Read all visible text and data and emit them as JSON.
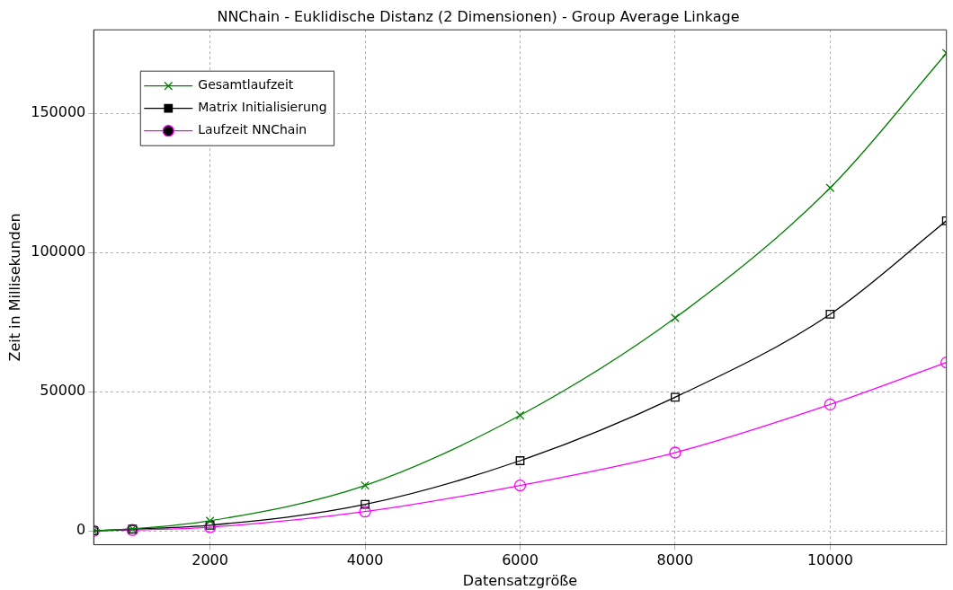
{
  "chart_data": {
    "type": "line",
    "title": "NNChain - Euklidische Distanz (2 Dimensionen) - Group Average Linkage",
    "xlabel": "Datensatzgröße",
    "ylabel": "Zeit in Millisekunden",
    "x": [
      500,
      1000,
      2000,
      4000,
      6000,
      8000,
      10000,
      11500
    ],
    "series": [
      {
        "name": "Gesamtlaufzeit",
        "color": "#008000",
        "marker": "cross",
        "values": [
          0,
          700,
          3600,
          16300,
          41500,
          76500,
          123200,
          171600
        ]
      },
      {
        "name": "Matrix Initialisierung",
        "color": "#000000",
        "marker": "square",
        "values": [
          0,
          600,
          2000,
          9500,
          25200,
          48000,
          77800,
          111400
        ]
      },
      {
        "name": "Laufzeit NNChain",
        "color": "#ff00ff",
        "marker": "circle",
        "values": [
          0,
          300,
          1300,
          6900,
          16300,
          28100,
          45400,
          60500
        ]
      }
    ],
    "xlim": [
      500,
      11500
    ],
    "xticks": [
      2000,
      4000,
      6000,
      8000,
      10000
    ],
    "ylim": [
      -5000,
      180000
    ],
    "yticks": [
      0,
      50000,
      100000,
      150000
    ],
    "grid": true,
    "legend": "top left",
    "line_style": "solid"
  }
}
